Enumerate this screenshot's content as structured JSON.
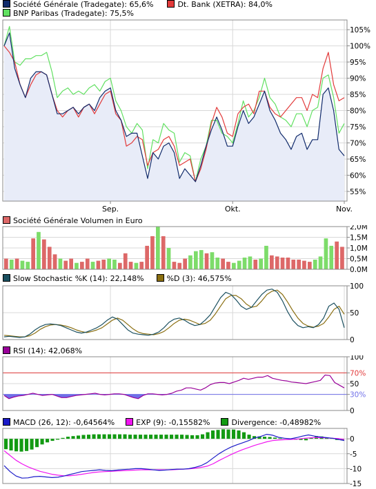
{
  "colors": {
    "sg": "#102a6b",
    "db": "#e23a3a",
    "bnp": "#60e060",
    "vol_up": "#7ddc6a",
    "vol_down": "#dd6868",
    "stoch_k": "#1a4f5f",
    "stoch_d": "#8a6e10",
    "rsi": "#990099",
    "rsi_fill": "#6f6fe8",
    "macd": "#1b1bc8",
    "exp": "#f014f0",
    "divergence": "#129a12",
    "grid": "#d8d8d8",
    "area": "#e8ecf8"
  },
  "chart_data": [
    {
      "type": "line",
      "legend": [
        {
          "label": "Société Générale (Tradegate): 65,6%",
          "color": "#102a6b"
        },
        {
          "label": "Dt. Bank (XETRA): 84,0%",
          "color": "#e23a3a"
        },
        {
          "label": "BNP Paribas (Tradegate): 75,5%",
          "color": "#60e060"
        }
      ],
      "x_labels": [
        {
          "label": "Sep.",
          "index": 20
        },
        {
          "label": "Okt.",
          "index": 43
        },
        {
          "label": "Nov.",
          "index": 64
        }
      ],
      "ylim": [
        52,
        108
      ],
      "y_ticks": [
        {
          "value": 105,
          "label": "105%"
        },
        {
          "value": 100,
          "label": "100%"
        },
        {
          "value": 95,
          "label": "95%"
        },
        {
          "value": 90,
          "label": "90%"
        },
        {
          "value": 85,
          "label": "85%"
        },
        {
          "value": 80,
          "label": "80%"
        },
        {
          "value": 75,
          "label": "75%"
        },
        {
          "value": 70,
          "label": "70%"
        },
        {
          "value": 65,
          "label": "65%"
        },
        {
          "value": 60,
          "label": "60%"
        },
        {
          "value": 55,
          "label": "55%"
        }
      ],
      "series": [
        {
          "name": "Société Générale (Tradegate)",
          "color": "#102a6b",
          "area": true,
          "values": [
            100,
            104,
            93,
            88,
            84,
            90,
            92,
            92,
            91,
            85,
            79,
            79,
            80,
            81,
            79,
            81,
            82,
            80,
            84,
            86,
            87,
            80,
            77,
            72,
            73,
            73,
            66,
            59,
            67,
            65,
            69,
            70,
            67,
            59,
            62,
            60,
            58,
            63,
            69,
            74,
            78,
            74,
            69,
            69,
            75,
            80,
            76,
            78,
            82,
            86,
            80,
            77,
            73,
            71,
            68,
            72,
            73,
            68,
            71,
            71,
            85,
            87,
            80,
            68,
            66
          ]
        },
        {
          "name": "Dt. Bank (XETRA)",
          "color": "#e23a3a",
          "values": [
            100,
            98,
            95,
            88,
            84,
            88,
            91,
            92,
            91,
            85,
            80,
            78,
            80,
            81,
            78,
            81,
            82,
            79,
            82,
            85,
            86,
            79,
            77,
            69,
            70,
            72,
            71,
            63,
            67,
            68,
            71,
            72,
            69,
            63,
            64,
            65,
            58,
            62,
            68,
            76,
            81,
            78,
            73,
            72,
            79,
            81,
            82,
            79,
            86,
            86,
            81,
            79,
            78,
            80,
            82,
            84,
            84,
            80,
            85,
            84,
            93,
            98,
            88,
            83,
            84
          ]
        },
        {
          "name": "BNP Paribas (Tradegate)",
          "color": "#60e060",
          "values": [
            100,
            106,
            95,
            94,
            96,
            96,
            97,
            97,
            98,
            92,
            84,
            86,
            87,
            85,
            86,
            85,
            87,
            88,
            86,
            89,
            90,
            83,
            80,
            75,
            73,
            76,
            74,
            62,
            71,
            70,
            76,
            74,
            73,
            64,
            67,
            66,
            58,
            65,
            69,
            77,
            77,
            73,
            72,
            70,
            76,
            83,
            78,
            80,
            84,
            90,
            84,
            82,
            78,
            77,
            75,
            79,
            79,
            75,
            80,
            81,
            90,
            91,
            84,
            73,
            76
          ]
        }
      ]
    },
    {
      "type": "bar",
      "legend": [
        {
          "label": "Société Générale Volumen in Euro",
          "color": "#dd6868"
        }
      ],
      "ylim": [
        0,
        2.0
      ],
      "y_ticks": [
        {
          "value": 2.0,
          "label": "2,0M"
        },
        {
          "value": 1.5,
          "label": "1,5M"
        },
        {
          "value": 1.0,
          "label": "1,0M"
        },
        {
          "value": 0.5,
          "label": "0,5M"
        },
        {
          "value": 0.0,
          "label": "0,0M"
        }
      ],
      "bars": [
        {
          "value": 0.5,
          "dir": "down"
        },
        {
          "value": 0.45,
          "dir": "up"
        },
        {
          "value": 0.5,
          "dir": "down"
        },
        {
          "value": 0.4,
          "dir": "up"
        },
        {
          "value": 0.35,
          "dir": "up"
        },
        {
          "value": 1.45,
          "dir": "down"
        },
        {
          "value": 1.75,
          "dir": "up"
        },
        {
          "value": 1.4,
          "dir": "down"
        },
        {
          "value": 1.05,
          "dir": "down"
        },
        {
          "value": 0.7,
          "dir": "down"
        },
        {
          "value": 0.5,
          "dir": "up"
        },
        {
          "value": 0.4,
          "dir": "down"
        },
        {
          "value": 0.5,
          "dir": "down"
        },
        {
          "value": 0.3,
          "dir": "up"
        },
        {
          "value": 0.35,
          "dir": "down"
        },
        {
          "value": 0.5,
          "dir": "down"
        },
        {
          "value": 0.35,
          "dir": "up"
        },
        {
          "value": 0.4,
          "dir": "down"
        },
        {
          "value": 0.45,
          "dir": "down"
        },
        {
          "value": 0.5,
          "dir": "up"
        },
        {
          "value": 0.45,
          "dir": "up"
        },
        {
          "value": 0.3,
          "dir": "down"
        },
        {
          "value": 0.75,
          "dir": "down"
        },
        {
          "value": 0.35,
          "dir": "down"
        },
        {
          "value": 0.3,
          "dir": "up"
        },
        {
          "value": 0.35,
          "dir": "down"
        },
        {
          "value": 1.1,
          "dir": "down"
        },
        {
          "value": 1.55,
          "dir": "down"
        },
        {
          "value": 2.0,
          "dir": "up"
        },
        {
          "value": 1.55,
          "dir": "down"
        },
        {
          "value": 1.0,
          "dir": "up"
        },
        {
          "value": 0.35,
          "dir": "down"
        },
        {
          "value": 0.3,
          "dir": "down"
        },
        {
          "value": 0.5,
          "dir": "down"
        },
        {
          "value": 0.65,
          "dir": "up"
        },
        {
          "value": 0.85,
          "dir": "up"
        },
        {
          "value": 0.9,
          "dir": "up"
        },
        {
          "value": 0.75,
          "dir": "down"
        },
        {
          "value": 0.8,
          "dir": "up"
        },
        {
          "value": 0.55,
          "dir": "up"
        },
        {
          "value": 0.5,
          "dir": "down"
        },
        {
          "value": 0.35,
          "dir": "down"
        },
        {
          "value": 0.3,
          "dir": "up"
        },
        {
          "value": 0.4,
          "dir": "up"
        },
        {
          "value": 0.55,
          "dir": "up"
        },
        {
          "value": 0.6,
          "dir": "up"
        },
        {
          "value": 0.45,
          "dir": "down"
        },
        {
          "value": 0.5,
          "dir": "up"
        },
        {
          "value": 1.1,
          "dir": "up"
        },
        {
          "value": 0.65,
          "dir": "down"
        },
        {
          "value": 0.6,
          "dir": "down"
        },
        {
          "value": 0.55,
          "dir": "down"
        },
        {
          "value": 0.55,
          "dir": "down"
        },
        {
          "value": 0.45,
          "dir": "down"
        },
        {
          "value": 0.45,
          "dir": "down"
        },
        {
          "value": 0.4,
          "dir": "down"
        },
        {
          "value": 0.35,
          "dir": "down"
        },
        {
          "value": 0.45,
          "dir": "up"
        },
        {
          "value": 0.6,
          "dir": "up"
        },
        {
          "value": 1.45,
          "dir": "up"
        },
        {
          "value": 1.1,
          "dir": "up"
        },
        {
          "value": 1.3,
          "dir": "down"
        },
        {
          "value": 1.05,
          "dir": "down"
        }
      ]
    },
    {
      "type": "line",
      "legend": [
        {
          "label": "Slow Stochastic %K (14): 22,148%",
          "color": "#1a4f5f"
        },
        {
          "label": "%D (3): 46,575%",
          "color": "#8a6e10"
        }
      ],
      "ylim": [
        0,
        100
      ],
      "y_ticks": [
        {
          "value": 100,
          "label": "100"
        },
        {
          "value": 50,
          "label": "50"
        },
        {
          "value": 0,
          "label": "0"
        }
      ],
      "series": [
        {
          "name": "Slow Stochastic %K (14)",
          "color": "#1a4f5f",
          "values": [
            5,
            6,
            5,
            4,
            5,
            10,
            18,
            24,
            28,
            29,
            28,
            26,
            22,
            18,
            14,
            12,
            14,
            18,
            22,
            28,
            36,
            42,
            38,
            28,
            18,
            12,
            10,
            9,
            8,
            10,
            14,
            22,
            32,
            38,
            40,
            36,
            30,
            26,
            28,
            36,
            46,
            62,
            78,
            88,
            84,
            74,
            62,
            56,
            60,
            72,
            84,
            92,
            94,
            88,
            72,
            52,
            36,
            26,
            22,
            24,
            22,
            28,
            40,
            62,
            68,
            56,
            22
          ]
        },
        {
          "name": "%D (3)",
          "color": "#8a6e10",
          "values": [
            8,
            7,
            6,
            5,
            5,
            7,
            12,
            19,
            24,
            27,
            28,
            27,
            25,
            22,
            18,
            15,
            13,
            15,
            18,
            22,
            29,
            36,
            40,
            36,
            28,
            20,
            14,
            11,
            10,
            9,
            11,
            15,
            22,
            30,
            36,
            38,
            36,
            32,
            28,
            30,
            36,
            48,
            62,
            76,
            82,
            82,
            76,
            66,
            60,
            62,
            72,
            84,
            90,
            92,
            84,
            70,
            54,
            40,
            30,
            25,
            23,
            25,
            30,
            42,
            56,
            62,
            47
          ]
        }
      ]
    },
    {
      "type": "line",
      "legend": [
        {
          "label": "RSI (14): 42,068%",
          "color": "#990099"
        }
      ],
      "ylim": [
        0,
        100
      ],
      "y_ticks": [
        {
          "value": 100,
          "label": "100"
        },
        {
          "value": 70,
          "label": "70%"
        },
        {
          "value": 50,
          "label": "50"
        },
        {
          "value": 30,
          "label": "30%"
        },
        {
          "value": 0,
          "label": "0"
        }
      ],
      "reference_lines": [
        {
          "value": 70,
          "color": "#e23a3a"
        },
        {
          "value": 30,
          "color": "#6f6fe8"
        }
      ],
      "series": [
        {
          "name": "RSI (14)",
          "color": "#990099",
          "values": [
            28,
            22,
            25,
            27,
            28,
            30,
            32,
            30,
            28,
            29,
            30,
            27,
            24,
            24,
            26,
            28,
            29,
            30,
            31,
            32,
            30,
            29,
            30,
            31,
            31,
            30,
            27,
            24,
            22,
            28,
            31,
            31,
            30,
            29,
            30,
            32,
            36,
            38,
            42,
            42,
            40,
            38,
            42,
            48,
            51,
            52,
            52,
            50,
            53,
            56,
            60,
            58,
            60,
            62,
            62,
            65,
            60,
            58,
            56,
            55,
            53,
            52,
            51,
            50,
            52,
            54,
            56,
            66,
            65,
            52,
            47,
            42
          ]
        }
      ]
    },
    {
      "type": "line",
      "legend": [
        {
          "label": "MACD (26, 12): -0,64564%",
          "color": "#1b1bc8"
        },
        {
          "label": "EXP (9): -0,15582%",
          "color": "#f014f0"
        },
        {
          "label": "Divergence: -0,48982%",
          "color": "#129a12"
        }
      ],
      "ylim": [
        -15,
        3.5
      ],
      "y_ticks": [
        {
          "value": 0,
          "label": "0"
        },
        {
          "value": -5,
          "label": "-5"
        },
        {
          "value": -10,
          "label": "-10"
        },
        {
          "value": -15,
          "label": "-15"
        }
      ],
      "series": [
        {
          "name": "MACD (26, 12)",
          "color": "#1b1bc8",
          "values": [
            -9,
            -11,
            -12.5,
            -13.2,
            -13.1,
            -12.7,
            -12.6,
            -12.8,
            -13.0,
            -12.9,
            -12.5,
            -12.0,
            -11.5,
            -11.0,
            -10.8,
            -10.6,
            -10.4,
            -10.6,
            -10.7,
            -10.5,
            -10.3,
            -10.2,
            -10.0,
            -10.0,
            -10.2,
            -10.4,
            -10.6,
            -10.5,
            -10.3,
            -10.2,
            -10.2,
            -10.0,
            -9.6,
            -9.0,
            -8.0,
            -6.5,
            -5.0,
            -3.8,
            -2.8,
            -2.0,
            -1.3,
            -0.6,
            0.3,
            0.8,
            1.5,
            1.2,
            0.5,
            0.2,
            0.0,
            0.4,
            0.9,
            1.3,
            0.9,
            0.6,
            0.4,
            0.2,
            -0.2,
            -0.6
          ]
        },
        {
          "name": "EXP (9)",
          "color": "#f014f0",
          "values": [
            -4.0,
            -5.6,
            -7.2,
            -8.4,
            -9.4,
            -10.2,
            -10.9,
            -11.4,
            -11.9,
            -12.2,
            -12.4,
            -12.4,
            -12.2,
            -11.9,
            -11.6,
            -11.3,
            -11.1,
            -11.0,
            -10.9,
            -10.8,
            -10.7,
            -10.6,
            -10.5,
            -10.4,
            -10.4,
            -10.4,
            -10.4,
            -10.4,
            -10.4,
            -10.3,
            -10.2,
            -10.1,
            -9.9,
            -9.6,
            -9.2,
            -8.4,
            -7.3,
            -6.3,
            -5.3,
            -4.4,
            -3.6,
            -2.9,
            -2.2,
            -1.6,
            -1.0,
            -0.6,
            -0.4,
            -0.3,
            -0.2,
            -0.1,
            0.1,
            0.3,
            0.4,
            0.4,
            0.3,
            0.2,
            0.1,
            -0.2
          ]
        },
        {
          "name": "Divergence",
          "color": "#129a12",
          "type": "bar",
          "values": [
            -3.5,
            -3.9,
            -4.2,
            -4.3,
            -4.1,
            -3.6,
            -2.8,
            -1.9,
            -1.2,
            -0.7,
            -0.3,
            0.3,
            0.7,
            0.9,
            1.1,
            1.3,
            1.4,
            1.5,
            1.5,
            1.5,
            1.5,
            1.5,
            1.5,
            1.5,
            1.4,
            1.4,
            1.4,
            1.4,
            1.4,
            1.4,
            1.4,
            1.4,
            1.4,
            1.4,
            1.4,
            1.3,
            1.2,
            1.2,
            1.5,
            2.2,
            2.8,
            3.0,
            3.2,
            3.1,
            3.1,
            2.8,
            2.2,
            1.4,
            0.9,
            0.8,
            0.7,
            0.6,
            0.4,
            0.2,
            0.0,
            -0.2,
            -0.3,
            -0.4,
            -0.5,
            0.3,
            0.9,
            0.8,
            0.5,
            0.3,
            -0.4,
            -0.5
          ]
        }
      ]
    }
  ]
}
